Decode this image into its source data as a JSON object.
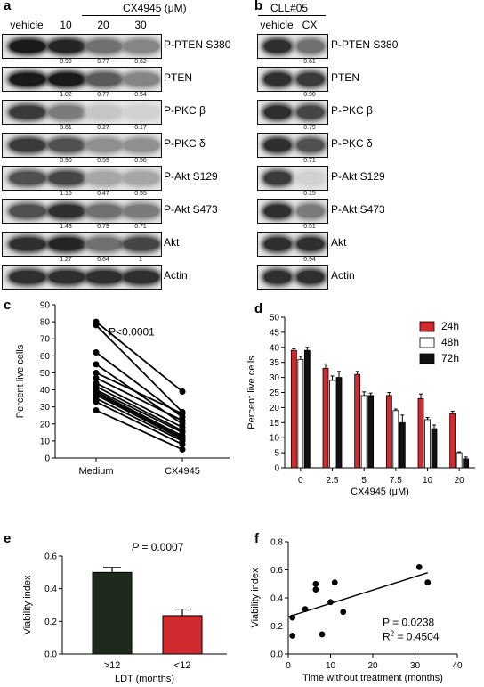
{
  "panels": {
    "a": "a",
    "b": "b",
    "c": "c",
    "d": "d",
    "e": "e",
    "f": "f"
  },
  "panel_a": {
    "treatment_label": "CX4945 (μM)",
    "lanes": [
      "vehicle",
      "10",
      "20",
      "30"
    ],
    "rows": [
      {
        "label": "P-PTEN S380",
        "quant": [
          "0.99",
          "0.77",
          "0.62"
        ],
        "intensity": [
          0.95,
          0.9,
          0.55,
          0.45
        ]
      },
      {
        "label": "PTEN",
        "quant": [
          "1.02",
          "0.77",
          "0.54"
        ],
        "intensity": [
          0.95,
          0.95,
          0.65,
          0.45
        ]
      },
      {
        "label": "P-PKC β",
        "quant": [
          "0.61",
          "0.27",
          "0.17"
        ],
        "intensity": [
          0.8,
          0.5,
          0.15,
          0.1
        ]
      },
      {
        "label": "P-PKC δ",
        "quant": [
          "0.90",
          "0.59",
          "0.56"
        ],
        "intensity": [
          0.8,
          0.7,
          0.4,
          0.4
        ]
      },
      {
        "label": "P-Akt S129",
        "quant": [
          "1.16",
          "0.47",
          "0.55"
        ],
        "intensity": [
          0.7,
          0.75,
          0.3,
          0.3
        ]
      },
      {
        "label": "P-Akt S473",
        "quant": [
          "1.43",
          "0.79",
          "0.71"
        ],
        "intensity": [
          0.7,
          0.85,
          0.55,
          0.5
        ]
      },
      {
        "label": "Akt",
        "quant": [
          "1.27",
          "0.64",
          "1"
        ],
        "intensity": [
          0.85,
          0.9,
          0.55,
          0.75
        ]
      },
      {
        "label": "Actin",
        "quant": [],
        "intensity": [
          0.85,
          0.85,
          0.85,
          0.85
        ]
      }
    ]
  },
  "panel_b": {
    "sample_label": "CLL#05",
    "lanes": [
      "vehicle",
      "CX"
    ],
    "rows": [
      {
        "label": "P-PTEN S380",
        "quant": [
          "0.61"
        ],
        "intensity": [
          0.85,
          0.55
        ]
      },
      {
        "label": "PTEN",
        "quant": [
          "0.90"
        ],
        "intensity": [
          0.85,
          0.8
        ]
      },
      {
        "label": "P-PKC β",
        "quant": [
          "0.79"
        ],
        "intensity": [
          0.85,
          0.75
        ]
      },
      {
        "label": "P-PKC δ",
        "quant": [
          "0.71"
        ],
        "intensity": [
          0.85,
          0.7
        ]
      },
      {
        "label": "P-Akt S129",
        "quant": [
          "0.15"
        ],
        "intensity": [
          0.8,
          0.1
        ]
      },
      {
        "label": "P-Akt S473",
        "quant": [
          "0.51"
        ],
        "intensity": [
          0.85,
          0.5
        ]
      },
      {
        "label": "Akt",
        "quant": [
          "0.94"
        ],
        "intensity": [
          0.85,
          0.85
        ]
      },
      {
        "label": "Actin",
        "quant": [],
        "intensity": [
          0.85,
          0.85
        ]
      }
    ]
  },
  "chart_data": [
    {
      "panel": "c",
      "type": "line",
      "ylabel": "Percent live cells",
      "categories": [
        "Medium",
        "CX4945"
      ],
      "ylim": [
        0,
        90
      ],
      "yticks": [
        "0",
        "10",
        "20",
        "30",
        "40",
        "50",
        "60",
        "70",
        "80",
        "90"
      ],
      "annotation": "P<0.0001",
      "pairs": [
        [
          80,
          39
        ],
        [
          78,
          27
        ],
        [
          62,
          24
        ],
        [
          55,
          20
        ],
        [
          50,
          26
        ],
        [
          47,
          22
        ],
        [
          44,
          18
        ],
        [
          42,
          16
        ],
        [
          40,
          15
        ],
        [
          39,
          13
        ],
        [
          38,
          12
        ],
        [
          37,
          11
        ],
        [
          35,
          10
        ],
        [
          33,
          8
        ],
        [
          28,
          5
        ]
      ]
    },
    {
      "panel": "d",
      "type": "bar",
      "ylabel": "Percent live cells",
      "xlabel": "CX4945 (μM)",
      "categories": [
        "0",
        "2.5",
        "5",
        "7.5",
        "10",
        "20"
      ],
      "ylim": [
        0,
        50
      ],
      "yticks": [
        "0",
        "5",
        "10",
        "15",
        "20",
        "25",
        "30",
        "35",
        "40",
        "45",
        "50"
      ],
      "legend_position": "top-right",
      "series": [
        {
          "name": "24h",
          "color": "#d12a2f",
          "values": [
            39,
            33,
            31,
            24,
            23,
            18
          ],
          "errors": [
            0.5,
            1.5,
            1,
            1,
            1.5,
            0.8
          ]
        },
        {
          "name": "48h",
          "color": "#ffffff",
          "values": [
            36,
            29,
            24,
            19,
            16,
            5
          ],
          "errors": [
            1,
            1.5,
            1.2,
            0.5,
            0.7,
            0.3
          ]
        },
        {
          "name": "72h",
          "color": "#111111",
          "values": [
            39,
            30,
            24,
            15,
            13,
            3
          ],
          "errors": [
            1,
            2,
            0.8,
            2.5,
            1.2,
            0.6
          ]
        }
      ]
    },
    {
      "panel": "e",
      "type": "bar",
      "ylabel": "Viability index",
      "xlabel": "LDT (months)",
      "categories": [
        ">12",
        "<12"
      ],
      "values": [
        0.5,
        0.235
      ],
      "errors": [
        0.03,
        0.04
      ],
      "colors": [
        "#1e2a1b",
        "#d12a2f"
      ],
      "ylim": [
        0,
        0.6
      ],
      "yticks": [
        "0.0",
        "0.2",
        "0.4",
        "0.6"
      ],
      "annotation_p": "P",
      "annotation_value": " = 0.0007"
    },
    {
      "panel": "f",
      "type": "scatter",
      "ylabel": "Viability index",
      "xlabel": "Time without treatment (months)",
      "xlim": [
        0,
        40
      ],
      "ylim": [
        0,
        0.8
      ],
      "xticks": [
        "0",
        "10",
        "20",
        "30",
        "40"
      ],
      "yticks": [
        "0.0",
        "0.2",
        "0.4",
        "0.6",
        "0.8"
      ],
      "points": [
        [
          1,
          0.26
        ],
        [
          1,
          0.13
        ],
        [
          4,
          0.32
        ],
        [
          6.5,
          0.5
        ],
        [
          6.5,
          0.46
        ],
        [
          8,
          0.14
        ],
        [
          10,
          0.37
        ],
        [
          11,
          0.51
        ],
        [
          13,
          0.3
        ],
        [
          31,
          0.62
        ],
        [
          33,
          0.51
        ]
      ],
      "fit": [
        [
          0,
          0.265
        ],
        [
          33,
          0.58
        ]
      ],
      "stats": [
        "P = 0.0238",
        "R",
        "2",
        " = 0.4504"
      ]
    }
  ]
}
